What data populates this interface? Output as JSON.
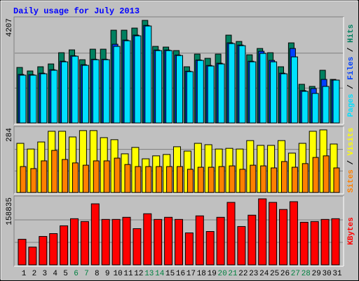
{
  "title": "Daily usage for July 2013",
  "legend_separator": " / ",
  "chart_data": [
    {
      "type": "bar",
      "ylim": [
        0,
        4207
      ],
      "yticks": [
        4207
      ],
      "grid": true,
      "series": [
        {
          "name": "Hits",
          "color": "#008060",
          "values": [
            2230,
            2089,
            2258,
            2371,
            2823,
            2936,
            2541,
            2964,
            2964,
            3727,
            3727,
            3812,
            4122,
            3077,
            3049,
            2908,
            2258,
            2767,
            2597,
            2767,
            3529,
            3275,
            2739,
            2993,
            2823,
            2258,
            3218,
            1553,
            1468,
            2117,
            1750
          ]
        },
        {
          "name": "Files",
          "color": "#0040ff",
          "values": [
            1950,
            1940,
            2000,
            2140,
            2480,
            2700,
            2340,
            2560,
            2560,
            3162,
            3330,
            3530,
            3920,
            2930,
            2930,
            2730,
            2080,
            2530,
            2310,
            2400,
            3220,
            3130,
            2480,
            2880,
            2513,
            2000,
            2993,
            1300,
            1383,
            1750,
            1722
          ]
        },
        {
          "name": "Pages",
          "color": "#00e0ff",
          "values": [
            1920,
            1920,
            1976,
            2117,
            2456,
            2682,
            2315,
            2541,
            2541,
            3077,
            3303,
            3501,
            3896,
            2908,
            2908,
            2710,
            2061,
            2513,
            2287,
            2371,
            3190,
            3105,
            2456,
            2795,
            2456,
            1976,
            2654,
            1270,
            1186,
            1468,
            1722
          ]
        }
      ]
    },
    {
      "type": "bar",
      "ylim": [
        0,
        284
      ],
      "yticks": [
        284
      ],
      "grid": true,
      "series": [
        {
          "name": "Visits",
          "color": "#ffff00",
          "values": [
            216,
            191,
            222,
            269,
            269,
            244,
            272,
            272,
            241,
            232,
            170,
            198,
            148,
            161,
            167,
            201,
            182,
            216,
            210,
            191,
            194,
            191,
            228,
            207,
            207,
            228,
            173,
            216,
            269,
            275,
            213
          ]
        },
        {
          "name": "Sites",
          "color": "#ff8000",
          "values": [
            114,
            105,
            139,
            185,
            145,
            130,
            120,
            139,
            139,
            151,
            123,
            114,
            114,
            114,
            114,
            114,
            102,
            111,
            111,
            114,
            117,
            102,
            120,
            117,
            108,
            136,
            111,
            127,
            154,
            161,
            108
          ]
        }
      ]
    },
    {
      "type": "bar",
      "ylim": [
        0,
        158835
      ],
      "yticks": [
        158835
      ],
      "grid": true,
      "categories": [
        "1",
        "2",
        "3",
        "4",
        "5",
        "6",
        "7",
        "8",
        "9",
        "10",
        "11",
        "12",
        "13",
        "14",
        "15",
        "16",
        "17",
        "18",
        "19",
        "20",
        "21",
        "22",
        "23",
        "24",
        "25",
        "26",
        "27",
        "28",
        "29",
        "30",
        "31"
      ],
      "category_colors": [
        "#000000",
        "#000000",
        "#000000",
        "#000000",
        "#000000",
        "#008040",
        "#008040",
        "#000000",
        "#000000",
        "#000000",
        "#000000",
        "#000000",
        "#008040",
        "#008040",
        "#000000",
        "#000000",
        "#000000",
        "#000000",
        "#000000",
        "#008040",
        "#008040",
        "#000000",
        "#000000",
        "#000000",
        "#000000",
        "#000000",
        "#008040",
        "#008040",
        "#000000",
        "#000000",
        "#000000"
      ],
      "series": [
        {
          "name": "KBytes",
          "color": "#ff0000",
          "values": [
            60192,
            41800,
            66880,
            73568,
            91960,
            108680,
            101992,
            143792,
            107008,
            107008,
            112024,
            85272,
            120384,
            107008,
            112024,
            107008,
            75240,
            115368,
            78584,
            112024,
            147136,
            90288,
            117040,
            155496,
            147136,
            130416,
            148808,
            100320,
            101992,
            107008,
            108680
          ]
        }
      ]
    }
  ]
}
